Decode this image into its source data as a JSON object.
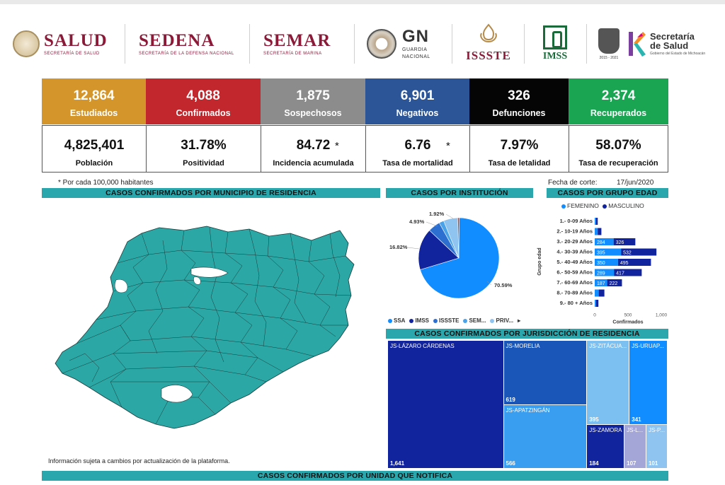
{
  "header": {
    "logos": [
      {
        "name": "SALUD",
        "sub": "SECRETARÍA DE SALUD"
      },
      {
        "name": "SEDENA",
        "sub": "SECRETARÍA DE LA DEFENSA NACIONAL"
      },
      {
        "name": "SEMAR",
        "sub": "SECRETARÍA DE MARINA"
      },
      {
        "name": "GN",
        "sub1": "GUARDIA",
        "sub2": "NACIONAL"
      },
      {
        "name": "ISSSTE"
      },
      {
        "name": "IMSS"
      },
      {
        "years": "2015 - 2021"
      },
      {
        "name1": "Secretaría",
        "name2": "de Salud",
        "sub": "Gobierno del Estado de Michoacán"
      }
    ]
  },
  "kpis": [
    {
      "value": "12,864",
      "label": "Estudiados",
      "color": "#d4952b"
    },
    {
      "value": "4,088",
      "label": "Confirmados",
      "color": "#c1272d"
    },
    {
      "value": "1,875",
      "label": "Sospechosos",
      "color": "#8c8c8c"
    },
    {
      "value": "6,901",
      "label": "Negativos",
      "color": "#2c5597"
    },
    {
      "value": "326",
      "label": "Defunciones",
      "color": "#050505"
    },
    {
      "value": "2,374",
      "label": "Recuperados",
      "color": "#1aa552"
    }
  ],
  "stats": [
    {
      "value": "4,825,401",
      "label": "Población"
    },
    {
      "value": "31.78%",
      "label": "Positividad"
    },
    {
      "value": "84.72",
      "label": "Incidencia acumulada",
      "star": "*"
    },
    {
      "value": "6.76",
      "label": "Tasa de mortalidad",
      "star": "*"
    },
    {
      "value": "7.97%",
      "label": "Tasa de letalidad"
    },
    {
      "value": "58.07%",
      "label": "Tasa de recuperación"
    }
  ],
  "notes": {
    "per_100k": "* Por cada 100,000 habitantes",
    "cutoff_label": "Fecha de corte:",
    "cutoff_date": "17/jun/2020",
    "disclaimer": "Información sujeta a cambios por actualización de la plataforma."
  },
  "sections": {
    "municipio": "CASOS CONFIRMADOS POR MUNICIPIO DE RESIDENCIA",
    "institucion": "CASOS POR INSTITUCIÓN",
    "edad": "CASOS POR GRUPO EDAD",
    "jurisdiccion": "CASOS CONFIRMADOS POR JURISDICCIÓN DE RESIDENCIA",
    "unidad": "CASOS CONFIRMADOS POR UNIDAD QUE NOTIFICA"
  },
  "chart_data": [
    {
      "type": "pie",
      "title": "CASOS POR INSTITUCIÓN",
      "categories": [
        "SSA",
        "IMSS",
        "ISSSTE",
        "SEM...",
        "PRIV..."
      ],
      "values": [
        70.59,
        16.82,
        4.93,
        1.92,
        5.74
      ],
      "labels": [
        "70.59%",
        "16.82%",
        "4.93%",
        "1.92%",
        ""
      ],
      "colors": [
        "#118dff",
        "#12239e",
        "#2d6fd1",
        "#4aa3e8",
        "#8fc3f0"
      ],
      "extra_slices": [
        {
          "value": 0.6,
          "color": "#c1272d"
        }
      ],
      "legend_more": "▸"
    },
    {
      "type": "bar",
      "title": "CASOS POR GRUPO EDAD",
      "orientation": "horizontal",
      "stacked": true,
      "legend": [
        "FEMENINO",
        "MASCULINO"
      ],
      "legend_colors": [
        "#118dff",
        "#12239e"
      ],
      "ylabel": "Grupo edad",
      "xlabel": "Confirmados",
      "categories": [
        "1.- 0-09 Años",
        "2.- 10-19 Años",
        "3.- 20-29 Años",
        "4.- 30-39 Años",
        "5.- 40-49 Años",
        "6.- 50-59 Años",
        "7.- 60-69 Años",
        "8.- 70-89 Años",
        "9.- 80 + Años"
      ],
      "series": [
        {
          "name": "FEMENINO",
          "values": [
            20,
            45,
            284,
            395,
            350,
            289,
            187,
            60,
            20
          ]
        },
        {
          "name": "MASCULINO",
          "values": [
            25,
            55,
            326,
            532,
            495,
            417,
            222,
            85,
            35
          ]
        }
      ],
      "shown_labels": {
        "FEMENINO": [
          "",
          "",
          "284",
          "395",
          "350",
          "289",
          "187",
          "",
          ""
        ],
        "MASCULINO": [
          "",
          "",
          "326",
          "532",
          "495",
          "417",
          "222",
          "",
          ""
        ]
      },
      "xticks": [
        "0",
        "500",
        "1,000"
      ],
      "xlim": [
        0,
        1000
      ]
    },
    {
      "type": "treemap",
      "title": "CASOS CONFIRMADOS POR JURISDICCIÓN DE RESIDENCIA",
      "categories": [
        "JS-LÁZARO CÁRDENAS",
        "JS-MORELIA",
        "JS-APATZINGÁN",
        "JS-ZITÁCUA...",
        "JS-URUAP...",
        "JS-ZAMORA",
        "JS-L...",
        "JS-P..."
      ],
      "values": [
        1641,
        619,
        566,
        395,
        341,
        184,
        107,
        101
      ]
    }
  ]
}
